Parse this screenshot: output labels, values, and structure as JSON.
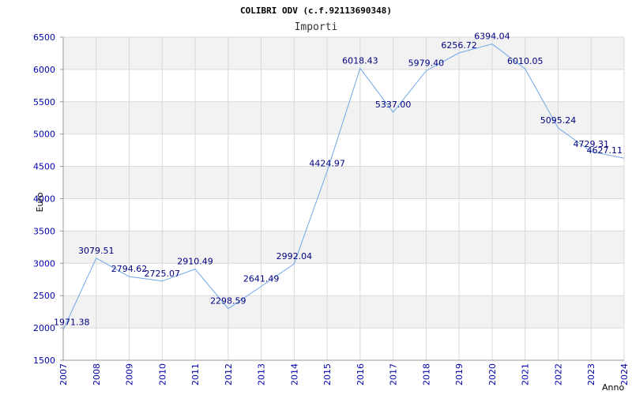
{
  "chart_data": {
    "type": "line",
    "title": "COLIBRI ODV (c.f.92113690348)",
    "subtitle": "Importi",
    "xlabel": "Anno",
    "ylabel": "Euro",
    "x": [
      "2007",
      "2008",
      "2009",
      "2010",
      "2011",
      "2012",
      "2013",
      "2014",
      "2015",
      "2016",
      "2017",
      "2018",
      "2019",
      "2020",
      "2021",
      "2022",
      "2023",
      "2024"
    ],
    "values": [
      1971.38,
      3079.51,
      2794.62,
      2725.07,
      2910.49,
      2298.59,
      2641.49,
      2992.04,
      4424.97,
      6018.43,
      5337.0,
      5979.4,
      6256.72,
      6394.04,
      6010.05,
      5095.24,
      4729.31,
      4627.11
    ],
    "labels": [
      "1971.38",
      "3079.51",
      "2794.62",
      "2725.07",
      "2910.49",
      "2298.59",
      "2641.49",
      "2992.04",
      "4424.97",
      "6018.43",
      "5337.00",
      "5979.40",
      "6256.72",
      "6394.04",
      "6010.05",
      "5095.24",
      "4729.31",
      "4627.11"
    ],
    "yticks": [
      "1500",
      "2000",
      "2500",
      "3000",
      "3500",
      "4000",
      "4500",
      "5000",
      "5500",
      "6000",
      "6500"
    ],
    "ylim": [
      1500,
      6500
    ],
    "grid": true,
    "colors": {
      "line": "#6fa8e8",
      "band": "#f2f2f2",
      "grid": "#d9d9d9",
      "tick": "#0000aa",
      "label": "#000080"
    }
  }
}
